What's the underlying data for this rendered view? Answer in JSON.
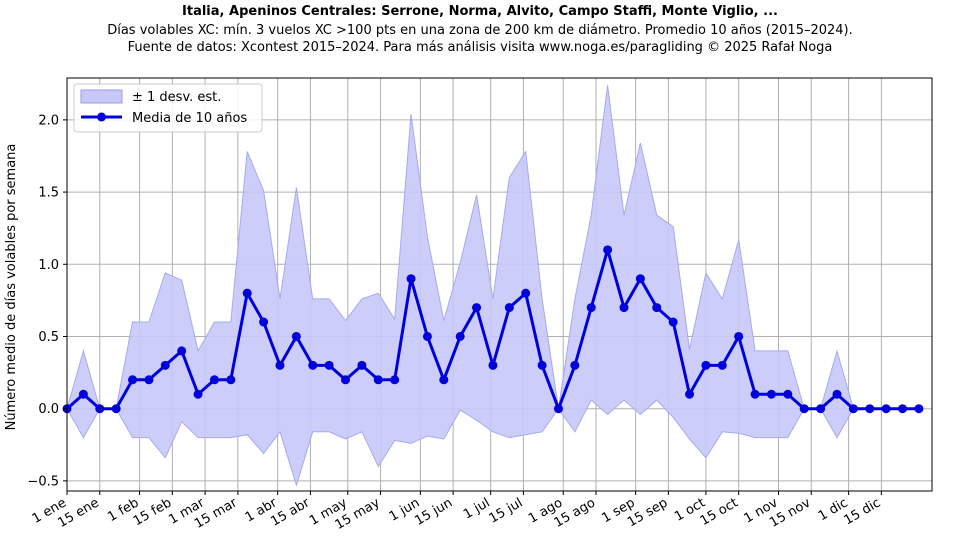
{
  "header": {
    "title": "Italia, Apeninos Centrales: Serrone, Norma, Alvito, Campo Staffi, Monte Viglio, ...",
    "subtitle": "Días volables XC: mín. 3 vuelos XC >100 pts en una zona de 200 km de diámetro. Promedio 10 años (2015–2024).",
    "source": "Fuente de datos: Xcontest 2015–2024. Para más análisis visita www.noga.es/paragliding © 2025 Rafał Noga"
  },
  "chart_data": {
    "type": "line",
    "title": "Italia, Apeninos Centrales: Serrone, Norma, Alvito, Campo Staffi, Monte Viglio, ...",
    "ylabel": "Número medio de días volables por semana",
    "xlabel": "",
    "ylim": [
      -0.57,
      2.29
    ],
    "xlim": [
      1,
      53.8
    ],
    "grid": true,
    "legend_position": "top-left",
    "yticks": [
      -0.5,
      0.0,
      0.5,
      1.0,
      1.5,
      2.0
    ],
    "ytick_labels": [
      "−0.5",
      "0.0",
      "0.5",
      "1.0",
      "1.5",
      "2.0"
    ],
    "xticks": [
      {
        "label": "1 ene",
        "week": 1
      },
      {
        "label": "15 ene",
        "week": 3
      },
      {
        "label": "1 feb",
        "week": 5.43
      },
      {
        "label": "15 feb",
        "week": 7.43
      },
      {
        "label": "1 mar",
        "week": 9.43
      },
      {
        "label": "15 mar",
        "week": 11.43
      },
      {
        "label": "1 abr",
        "week": 13.86
      },
      {
        "label": "15 abr",
        "week": 15.86
      },
      {
        "label": "1 may",
        "week": 18.14
      },
      {
        "label": "15 may",
        "week": 20.14
      },
      {
        "label": "1 jun",
        "week": 22.57
      },
      {
        "label": "15 jun",
        "week": 24.57
      },
      {
        "label": "1 jul",
        "week": 26.86
      },
      {
        "label": "15 jul",
        "week": 28.86
      },
      {
        "label": "1 ago",
        "week": 31.29
      },
      {
        "label": "15 ago",
        "week": 33.29
      },
      {
        "label": "1 sep",
        "week": 35.71
      },
      {
        "label": "15 sep",
        "week": 37.71
      },
      {
        "label": "1 oct",
        "week": 40.0
      },
      {
        "label": "15 oct",
        "week": 42.0
      },
      {
        "label": "1 nov",
        "week": 44.43
      },
      {
        "label": "15 nov",
        "week": 46.43
      },
      {
        "label": "1 dic",
        "week": 48.71
      },
      {
        "label": "15 dic",
        "week": 50.71
      }
    ],
    "weeks": [
      1,
      2,
      3,
      4,
      5,
      6,
      7,
      8,
      9,
      10,
      11,
      12,
      13,
      14,
      15,
      16,
      17,
      18,
      19,
      20,
      21,
      22,
      23,
      24,
      25,
      26,
      27,
      28,
      29,
      30,
      31,
      32,
      33,
      34,
      35,
      36,
      37,
      38,
      39,
      40,
      41,
      42,
      43,
      44,
      45,
      46,
      47,
      48,
      49,
      50,
      51,
      52,
      53
    ],
    "series": [
      {
        "name": "Media de 10 años",
        "color": "#0000dd",
        "values": [
          0.0,
          0.1,
          0.0,
          0.0,
          0.2,
          0.2,
          0.3,
          0.4,
          0.1,
          0.2,
          0.2,
          0.8,
          0.6,
          0.3,
          0.5,
          0.3,
          0.3,
          0.2,
          0.3,
          0.2,
          0.2,
          0.9,
          0.5,
          0.2,
          0.5,
          0.7,
          0.3,
          0.7,
          0.8,
          0.3,
          0.0,
          0.3,
          0.7,
          1.1,
          0.7,
          0.9,
          0.7,
          0.6,
          0.1,
          0.3,
          0.3,
          0.5,
          0.1,
          0.1,
          0.1,
          0.0,
          0.0,
          0.1,
          0.0,
          0.0,
          0.0,
          0.0,
          0.0
        ]
      }
    ],
    "band": {
      "name": "± 1 desv. est.",
      "color": "#c8c8f8",
      "upper": [
        0.0,
        0.4,
        0.0,
        0.0,
        0.6,
        0.6,
        0.94,
        0.89,
        0.4,
        0.6,
        0.6,
        1.78,
        1.51,
        0.76,
        1.53,
        0.76,
        0.76,
        0.61,
        0.76,
        0.8,
        0.62,
        2.04,
        1.19,
        0.61,
        1.01,
        1.48,
        0.76,
        1.6,
        1.78,
        0.76,
        0.0,
        0.76,
        1.34,
        2.24,
        1.34,
        1.84,
        1.34,
        1.26,
        0.41,
        0.94,
        0.76,
        1.17,
        0.4,
        0.4,
        0.4,
        0.0,
        0.0,
        0.4,
        0.0,
        0.0,
        0.0,
        0.0,
        0.0
      ],
      "lower": [
        0.0,
        -0.2,
        0.0,
        0.0,
        -0.2,
        -0.2,
        -0.34,
        -0.09,
        -0.2,
        -0.2,
        -0.2,
        -0.18,
        -0.31,
        -0.16,
        -0.53,
        -0.16,
        -0.16,
        -0.21,
        -0.16,
        -0.4,
        -0.22,
        -0.24,
        -0.19,
        -0.21,
        -0.01,
        -0.08,
        -0.16,
        -0.2,
        -0.18,
        -0.16,
        0.0,
        -0.16,
        0.06,
        -0.04,
        0.06,
        -0.04,
        0.06,
        -0.06,
        -0.21,
        -0.34,
        -0.16,
        -0.17,
        -0.2,
        -0.2,
        -0.2,
        0.0,
        0.0,
        -0.2,
        0.0,
        0.0,
        0.0,
        0.0,
        0.0
      ]
    }
  }
}
